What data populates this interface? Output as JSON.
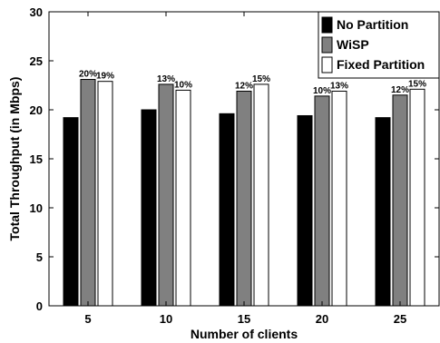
{
  "chart_data": {
    "type": "bar",
    "xlabel": "Number of clients",
    "ylabel": "Total Throughput (in Mbps)",
    "categories": [
      "5",
      "10",
      "15",
      "20",
      "25"
    ],
    "ylim": [
      0,
      30
    ],
    "yticks": [
      "0",
      "5",
      "10",
      "15",
      "20",
      "25",
      "30"
    ],
    "legend_position": "top-right",
    "grid": false,
    "series": [
      {
        "name": "No Partition",
        "color": "#000000",
        "values": [
          19.2,
          20.0,
          19.6,
          19.4,
          19.2
        ],
        "labels": [
          "",
          "",
          "",
          "",
          ""
        ]
      },
      {
        "name": "WiSP",
        "color": "#808080",
        "values": [
          23.1,
          22.6,
          21.9,
          21.4,
          21.5
        ],
        "labels": [
          "20%",
          "13%",
          "12%",
          "10%",
          "12%"
        ]
      },
      {
        "name": "Fixed Partition",
        "color": "#ffffff",
        "values": [
          22.9,
          22.0,
          22.6,
          21.9,
          22.1
        ],
        "labels": [
          "19%",
          "10%",
          "15%",
          "13%",
          "15%"
        ]
      }
    ]
  }
}
